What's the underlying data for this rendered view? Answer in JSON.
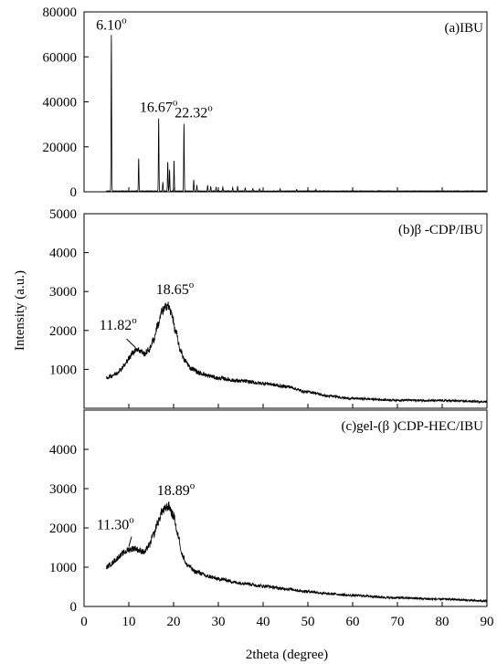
{
  "chart_data": {
    "type": "line",
    "xlabel": "2theta (degree)",
    "ylabel": "Intensity (a.u.)",
    "xlim": [
      0,
      90
    ],
    "xticks": [
      0,
      10,
      20,
      30,
      40,
      50,
      60,
      70,
      80,
      90
    ],
    "grid": false,
    "panels": [
      {
        "label": "(a)IBU",
        "ylim": [
          0,
          80000
        ],
        "yticks": [
          0,
          20000,
          40000,
          60000,
          80000
        ],
        "series": {
          "kind": "peaks",
          "baseline": 300,
          "x_range": [
            5.0,
            90.0
          ],
          "peaks": [
            {
              "x": 6.1,
              "y": 69500
            },
            {
              "x": 12.2,
              "y": 14500
            },
            {
              "x": 16.67,
              "y": 32500
            },
            {
              "x": 17.6,
              "y": 4000
            },
            {
              "x": 18.7,
              "y": 13000
            },
            {
              "x": 19.1,
              "y": 9500
            },
            {
              "x": 20.1,
              "y": 13500
            },
            {
              "x": 22.32,
              "y": 30000
            },
            {
              "x": 24.5,
              "y": 5000
            },
            {
              "x": 25.2,
              "y": 2500
            },
            {
              "x": 27.6,
              "y": 2500
            },
            {
              "x": 28.3,
              "y": 2000
            },
            {
              "x": 29.5,
              "y": 1800
            },
            {
              "x": 31.0,
              "y": 1800
            },
            {
              "x": 33.2,
              "y": 1600
            },
            {
              "x": 34.3,
              "y": 2000
            },
            {
              "x": 36.0,
              "y": 1500
            },
            {
              "x": 37.7,
              "y": 1200
            },
            {
              "x": 39.2,
              "y": 1000
            },
            {
              "x": 43.8,
              "y": 1000
            },
            {
              "x": 47.5,
              "y": 800
            },
            {
              "x": 51.8,
              "y": 700
            }
          ]
        },
        "annotations": [
          {
            "text": "6.10",
            "sup": "o",
            "x": 6.1,
            "y": 72000
          },
          {
            "text": "16.67",
            "sup": "o",
            "x": 16.67,
            "y": 35500
          },
          {
            "text": "22.32",
            "sup": "o",
            "x": 24.5,
            "y": 33000
          }
        ]
      },
      {
        "label": "(b)β -CDP/IBU",
        "ylim": [
          0,
          5000
        ],
        "yticks": [
          1000,
          2000,
          3000,
          4000,
          5000
        ],
        "series": {
          "kind": "profile",
          "noise": 60,
          "points": [
            [
              5,
              780
            ],
            [
              6,
              830
            ],
            [
              7,
              880
            ],
            [
              8,
              980
            ],
            [
              9,
              1100
            ],
            [
              10,
              1280
            ],
            [
              11,
              1450
            ],
            [
              11.82,
              1530
            ],
            [
              12.5,
              1480
            ],
            [
              13.5,
              1400
            ],
            [
              14.5,
              1500
            ],
            [
              15.5,
              1750
            ],
            [
              16.5,
              2150
            ],
            [
              17.5,
              2500
            ],
            [
              18.65,
              2650
            ],
            [
              19.5,
              2450
            ],
            [
              20.5,
              1950
            ],
            [
              21.5,
              1500
            ],
            [
              22.5,
              1220
            ],
            [
              24,
              1020
            ],
            [
              26,
              900
            ],
            [
              28,
              830
            ],
            [
              30,
              770
            ],
            [
              35,
              700
            ],
            [
              40,
              640
            ],
            [
              45,
              560
            ],
            [
              50,
              420
            ],
            [
              55,
              310
            ],
            [
              60,
              250
            ],
            [
              70,
              210
            ],
            [
              80,
              195
            ],
            [
              90,
              170
            ]
          ]
        },
        "annotations": [
          {
            "text": "11.82",
            "sup": "o",
            "x": 7.6,
            "y": 2020
          },
          {
            "text": "18.65",
            "sup": "o",
            "x": 20.3,
            "y": 2940
          }
        ],
        "pointer": {
          "x1": 9.5,
          "y1": 1780,
          "x2": 11.5,
          "y2": 1560
        }
      },
      {
        "label": "(c)gel-(β )CDP-HEC/IBU",
        "ylim": [
          0,
          5000
        ],
        "yticks": [
          0,
          1000,
          2000,
          3000,
          4000
        ],
        "series": {
          "kind": "profile",
          "noise": 60,
          "points": [
            [
              5,
              1000
            ],
            [
              6,
              1080
            ],
            [
              7,
              1180
            ],
            [
              8,
              1290
            ],
            [
              9,
              1380
            ],
            [
              10,
              1450
            ],
            [
              11.3,
              1480
            ],
            [
              12.5,
              1420
            ],
            [
              13.5,
              1380
            ],
            [
              14.5,
              1550
            ],
            [
              15.5,
              1820
            ],
            [
              16.5,
              2150
            ],
            [
              17.5,
              2430
            ],
            [
              18.89,
              2550
            ],
            [
              20,
              2300
            ],
            [
              21,
              1800
            ],
            [
              22,
              1300
            ],
            [
              23,
              1050
            ],
            [
              25,
              880
            ],
            [
              28,
              760
            ],
            [
              30,
              700
            ],
            [
              35,
              600
            ],
            [
              40,
              520
            ],
            [
              45,
              450
            ],
            [
              50,
              380
            ],
            [
              55,
              320
            ],
            [
              60,
              280
            ],
            [
              70,
              220
            ],
            [
              80,
              185
            ],
            [
              90,
              140
            ]
          ]
        },
        "annotations": [
          {
            "text": "11.30",
            "sup": "o",
            "x": 7.0,
            "y": 1960
          },
          {
            "text": "18.89",
            "sup": "o",
            "x": 20.5,
            "y": 2840
          }
        ],
        "pointer": {
          "x1": 10.6,
          "y1": 1780,
          "x2": 10.0,
          "y2": 1520
        }
      }
    ]
  }
}
